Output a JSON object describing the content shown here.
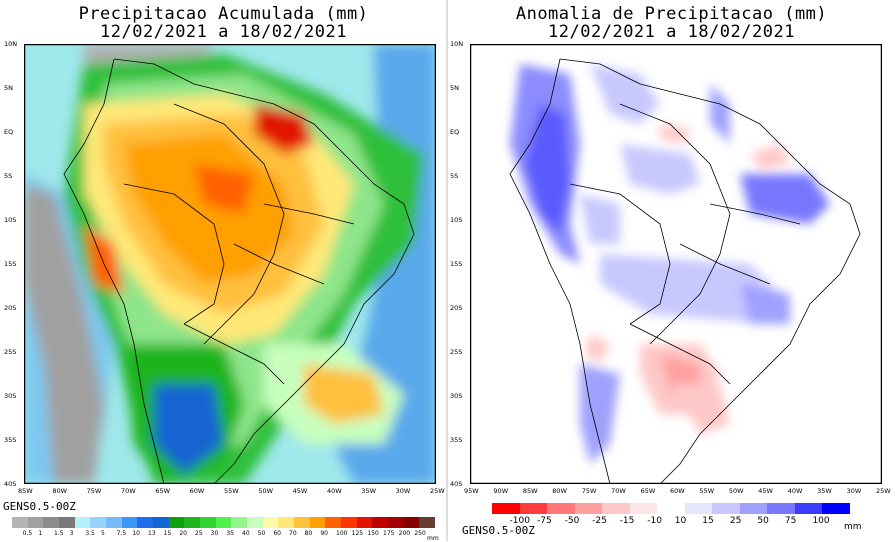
{
  "left": {
    "title_line1": "Precipitacao Acumulada (mm)",
    "title_line2": "12/02/2021 a 18/02/2021",
    "model": "GENS0.5-00Z",
    "unit": "mm",
    "colorbar": {
      "labels": [
        "0.5",
        "1",
        "1.5",
        "3",
        "3.5",
        "5",
        "7.5",
        "10",
        "13",
        "15",
        "20",
        "25",
        "30",
        "35",
        "40",
        "50",
        "60",
        "70",
        "80",
        "90",
        "100",
        "125",
        "150",
        "175",
        "200",
        "250"
      ],
      "colors": [
        "#b4b4b4",
        "#a0a0a0",
        "#8c8c8c",
        "#787878",
        "#b4f0fa",
        "#96d2fa",
        "#78b9fa",
        "#3c96f5",
        "#1e6eeb",
        "#1464d2",
        "#0fa00f",
        "#1eb41e",
        "#32d232",
        "#50f050",
        "#96f58c",
        "#c8ffbe",
        "#fffaaa",
        "#ffe878",
        "#ffc03c",
        "#ffa000",
        "#ff6000",
        "#ff3200",
        "#e11400",
        "#c00000",
        "#a50000",
        "#870000",
        "#643c32"
      ]
    }
  },
  "right": {
    "title_line1": "Anomalia de Precipitacao (mm)",
    "title_line2": "12/02/2021 a 18/02/2021",
    "model": "GENS0.5-00Z",
    "unit": "mm",
    "colorbar": {
      "labels": [
        "-100",
        "-75",
        "-50",
        "-25",
        "-15",
        "-10",
        "10",
        "15",
        "25",
        "50",
        "75",
        "100"
      ],
      "colors": [
        "#ff0000",
        "#ff3c3c",
        "#ff7878",
        "#ffa0a0",
        "#ffc8c8",
        "#ffe6e6",
        "#ffffff",
        "#e6e6ff",
        "#c8c8ff",
        "#a0a0ff",
        "#7878ff",
        "#3c3cff",
        "#0000ff"
      ]
    }
  },
  "axes": {
    "lat_labels": [
      "10N",
      "5N",
      "EQ",
      "5S",
      "10S",
      "15S",
      "20S",
      "25S",
      "30S",
      "35S",
      "40S"
    ],
    "lon_labels": [
      "95W",
      "90W",
      "85W",
      "80W",
      "75W",
      "70W",
      "65W",
      "60W",
      "55W",
      "50W",
      "45W",
      "40W",
      "35W",
      "30W",
      "25W"
    ],
    "lon_labels_left": [
      "85W",
      "80W",
      "75W",
      "70W",
      "65W",
      "60W",
      "55W",
      "50W",
      "45W",
      "40W",
      "35W",
      "30W",
      "25W"
    ]
  }
}
